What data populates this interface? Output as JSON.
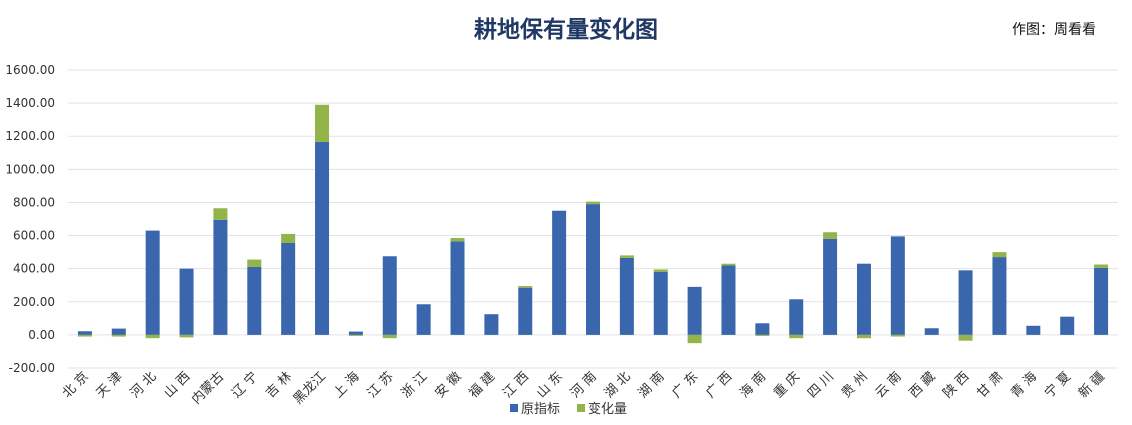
{
  "header": {
    "title": "耕地保有量变化图",
    "credit": "作图：周看看"
  },
  "colors": {
    "original": "#3a66ae",
    "change": "#93b34b",
    "grid": "#e3e3e3",
    "title": "#1f3864"
  },
  "chart_data": {
    "type": "bar",
    "stacked": true,
    "title": "耕地保有量变化图",
    "ylim": [
      -200,
      1600
    ],
    "y_ticks": [
      "-200.00",
      "0.00",
      "200.00",
      "400.00",
      "600.00",
      "800.00",
      "1000.00",
      "1200.00",
      "1400.00",
      "1600.00"
    ],
    "grid": true,
    "legend_position": "bottom",
    "categories": [
      "北 京",
      "天 津",
      "河 北",
      "山 西",
      "内蒙古",
      "辽 宁",
      "吉 林",
      "黑龙江",
      "上 海",
      "江 苏",
      "浙 江",
      "安 徽",
      "福 建",
      "江 西",
      "山 东",
      "河 南",
      "湖 北",
      "湖 南",
      "广 东",
      "广 西",
      "海 南",
      "重 庆",
      "四 川",
      "贵 州",
      "云 南",
      "西 藏",
      "陕 西",
      "甘 肃",
      "青 海",
      "宁 夏",
      "新 疆"
    ],
    "series": [
      {
        "name": "原指标",
        "values": [
          22,
          38,
          630,
          400,
          695,
          410,
          555,
          1165,
          20,
          475,
          185,
          565,
          125,
          285,
          750,
          790,
          465,
          380,
          290,
          420,
          70,
          215,
          580,
          430,
          595,
          40,
          390,
          470,
          55,
          110,
          405
        ]
      },
      {
        "name": "变化量",
        "values": [
          -10,
          -10,
          -20,
          -15,
          70,
          45,
          55,
          225,
          -5,
          -20,
          0,
          20,
          0,
          10,
          0,
          15,
          15,
          15,
          -50,
          10,
          -5,
          -20,
          40,
          -20,
          -10,
          0,
          -35,
          30,
          0,
          0,
          20
        ]
      }
    ]
  }
}
